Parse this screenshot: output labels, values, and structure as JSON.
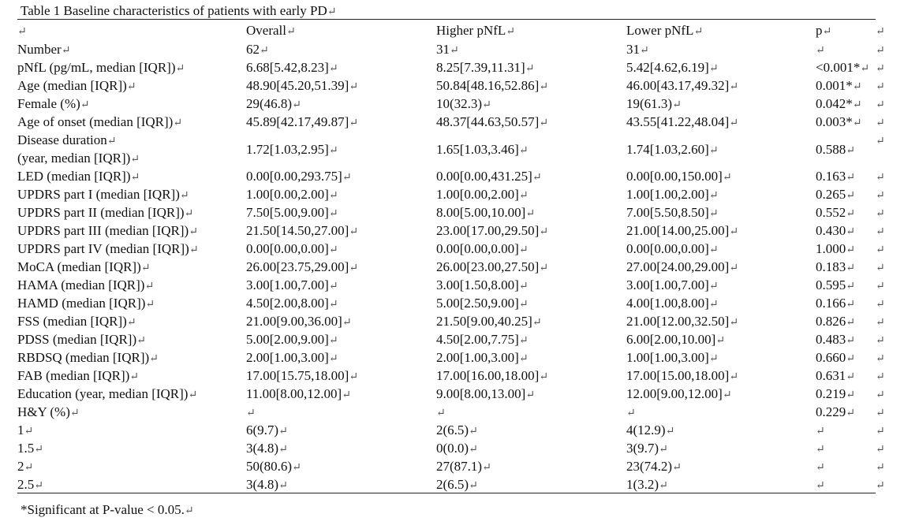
{
  "title": "Table 1 Baseline characteristics of patients with early PD",
  "mark": "↵",
  "columns": [
    "",
    "Overall",
    "Higher pNfL",
    "Lower pNfL",
    "p"
  ],
  "rows": [
    {
      "label": "Number",
      "overall": "62",
      "higher": "31",
      "lower": "31",
      "p": ""
    },
    {
      "label": "pNfL (pg/mL, median [IQR])",
      "overall": "6.68[5.42,8.23]",
      "higher": "8.25[7.39,11.31]",
      "lower": "5.42[4.62,6.19]",
      "p": "<0.001*"
    },
    {
      "label": "Age (median [IQR])",
      "overall": "48.90[45.20,51.39]",
      "higher": "50.84[48.16,52.86]",
      "lower": "46.00[43.17,49.32]",
      "p": "0.001*"
    },
    {
      "label": "Female (%)",
      "overall": "29(46.8)",
      "higher": "10(32.3)",
      "lower": "19(61.3)",
      "p": "0.042*"
    },
    {
      "label": "Age of onset (median [IQR])",
      "overall": "45.89[42.17,49.87]",
      "higher": "48.37[44.63,50.57]",
      "lower": "43.55[41.22,48.04]",
      "p": "0.003*"
    },
    {
      "label": "Disease duration",
      "label2": "(year, median [IQR])",
      "overall": "1.72[1.03,2.95]",
      "higher": "1.65[1.03,3.46]",
      "lower": "1.74[1.03,2.60]",
      "p": "0.588"
    },
    {
      "label": "LED (median [IQR])",
      "overall": "0.00[0.00,293.75]",
      "higher": "0.00[0.00,431.25]",
      "lower": "0.00[0.00,150.00]",
      "p": "0.163"
    },
    {
      "label": "UPDRS part I (median [IQR])",
      "overall": "1.00[0.00,2.00]",
      "higher": "1.00[0.00,2.00]",
      "lower": "1.00[1.00,2.00]",
      "p": "0.265"
    },
    {
      "label": "UPDRS part II (median [IQR])",
      "overall": "7.50[5.00,9.00]",
      "higher": "8.00[5.00,10.00]",
      "lower": "7.00[5.50,8.50]",
      "p": "0.552"
    },
    {
      "label": "UPDRS part III (median [IQR])",
      "overall": "21.50[14.50,27.00]",
      "higher": "23.00[17.00,29.50]",
      "lower": "21.00[14.00,25.00]",
      "p": "0.430"
    },
    {
      "label": "UPDRS part IV (median [IQR])",
      "overall": "0.00[0.00,0.00]",
      "higher": "0.00[0.00,0.00]",
      "lower": "0.00[0.00,0.00]",
      "p": "1.000"
    },
    {
      "label": "MoCA (median [IQR])",
      "overall": "26.00[23.75,29.00]",
      "higher": "26.00[23.00,27.50]",
      "lower": "27.00[24.00,29.00]",
      "p": "0.183"
    },
    {
      "label": "HAMA (median [IQR])",
      "overall": "3.00[1.00,7.00]",
      "higher": "3.00[1.50,8.00]",
      "lower": "3.00[1.00,7.00]",
      "p": "0.595"
    },
    {
      "label": "HAMD (median [IQR])",
      "overall": "4.50[2.00,8.00]",
      "higher": "5.00[2.50,9.00]",
      "lower": "4.00[1.00,8.00]",
      "p": "0.166"
    },
    {
      "label": "FSS (median [IQR])",
      "overall": "21.00[9.00,36.00]",
      "higher": "21.50[9.00,40.25]",
      "lower": "21.00[12.00,32.50]",
      "p": "0.826"
    },
    {
      "label": "PDSS (median [IQR])",
      "overall": "5.00[2.00,9.00]",
      "higher": "4.50[2.00,7.75]",
      "lower": "6.00[2.00,10.00]",
      "p": "0.483"
    },
    {
      "label": "RBDSQ (median [IQR])",
      "overall": "2.00[1.00,3.00]",
      "higher": "2.00[1.00,3.00]",
      "lower": "1.00[1.00,3.00]",
      "p": "0.660"
    },
    {
      "label": "FAB (median [IQR])",
      "overall": "17.00[15.75,18.00]",
      "higher": "17.00[16.00,18.00]",
      "lower": "17.00[15.00,18.00]",
      "p": "0.631"
    },
    {
      "label": "Education (year, median [IQR])",
      "overall": "11.00[8.00,12.00]",
      "higher": "9.00[8.00,13.00]",
      "lower": "12.00[9.00,12.00]",
      "p": "0.219"
    },
    {
      "label": "H&Y (%)",
      "overall": "",
      "higher": "",
      "lower": "",
      "p": "0.229"
    },
    {
      "label": "1",
      "overall": "6(9.7)",
      "higher": "2(6.5)",
      "lower": "4(12.9)",
      "p": ""
    },
    {
      "label": "1.5",
      "overall": "3(4.8)",
      "higher": "0(0.0)",
      "lower": "3(9.7)",
      "p": ""
    },
    {
      "label": "2",
      "overall": "50(80.6)",
      "higher": "27(87.1)",
      "lower": "23(74.2)",
      "p": ""
    },
    {
      "label": "2.5",
      "overall": "3(4.8)",
      "higher": "2(6.5)",
      "lower": "1(3.2)",
      "p": ""
    }
  ],
  "footnote": "*Significant at P-value < 0.05."
}
